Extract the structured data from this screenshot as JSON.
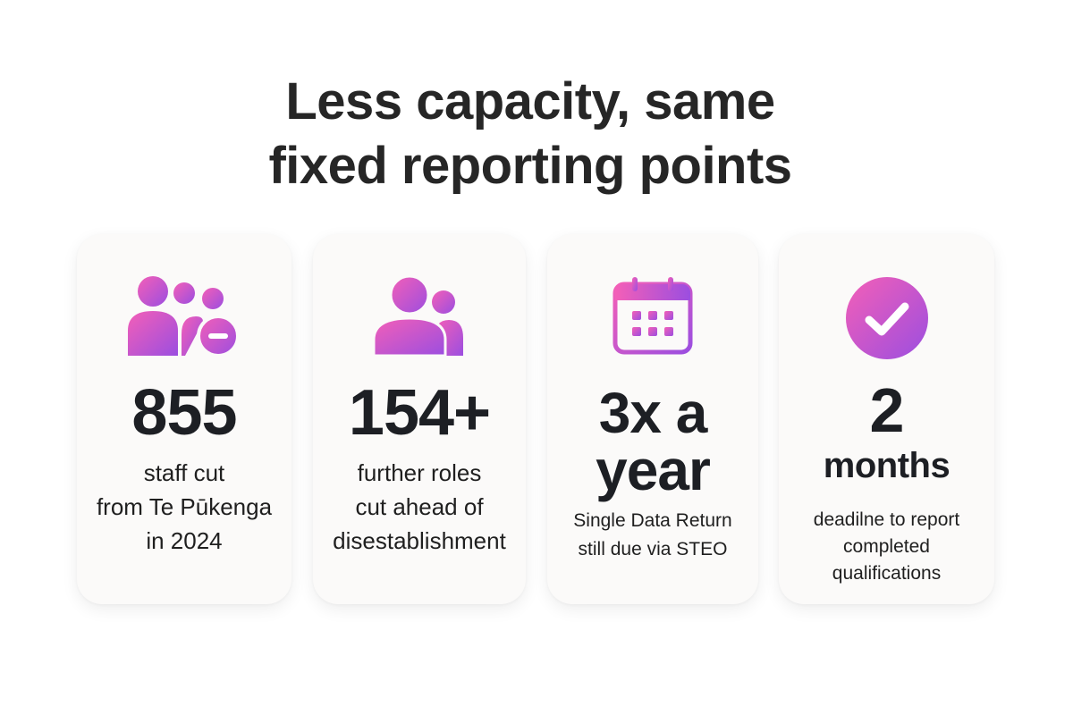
{
  "title": {
    "line1": "Less capacity, same",
    "line2": "fixed reporting points"
  },
  "colors": {
    "gradient_start": "#f25bb4",
    "gradient_end": "#9a4de0",
    "card_bg": "#fbfaf9",
    "text_dark": "#1d1f24"
  },
  "cards": [
    {
      "icon": "people-remove-icon",
      "stat": "855",
      "desc_lines": [
        "staff cut",
        "from Te Pūkenga",
        "in 2024"
      ]
    },
    {
      "icon": "people-group-icon",
      "stat": "154+",
      "desc_lines": [
        "further roles",
        "cut ahead of",
        "disestablishment"
      ]
    },
    {
      "icon": "calendar-icon",
      "stat_lines": [
        "3x a",
        "year"
      ],
      "desc_lines": [
        "Single Data Return",
        "still due via STEO"
      ]
    },
    {
      "icon": "check-circle-icon",
      "stat_number": "2",
      "stat_unit": "months",
      "desc_lines": [
        "deadilne to report",
        "completed",
        "qualifications"
      ]
    }
  ]
}
